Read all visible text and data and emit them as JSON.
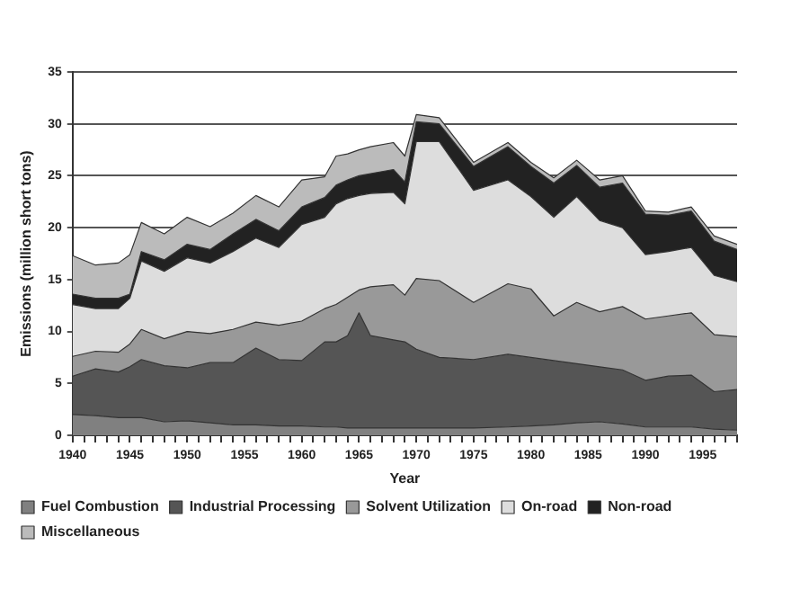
{
  "chart_data": {
    "type": "area",
    "stacked": true,
    "xlabel": "Year",
    "ylabel": "Emissions (million short tons)",
    "x": [
      1940,
      1942,
      1944,
      1945,
      1946,
      1948,
      1950,
      1952,
      1954,
      1956,
      1958,
      1960,
      1962,
      1963,
      1964,
      1965,
      1966,
      1968,
      1969,
      1970,
      1972,
      1975,
      1978,
      1980,
      1982,
      1984,
      1986,
      1988,
      1990,
      1992,
      1994,
      1996,
      1998
    ],
    "series": [
      {
        "name": "Fuel Combustion",
        "color": "#808080",
        "values": [
          2.0,
          1.9,
          1.7,
          1.7,
          1.7,
          1.3,
          1.4,
          1.2,
          1.0,
          1.0,
          0.9,
          0.9,
          0.8,
          0.8,
          0.7,
          0.7,
          0.7,
          0.7,
          0.7,
          0.7,
          0.7,
          0.7,
          0.8,
          0.9,
          1.0,
          1.2,
          1.3,
          1.1,
          0.8,
          0.8,
          0.8,
          0.6,
          0.5
        ]
      },
      {
        "name": "Industrial Processing",
        "color": "#555555",
        "values": [
          3.7,
          4.5,
          4.4,
          4.9,
          5.6,
          5.4,
          5.1,
          5.8,
          6.0,
          7.4,
          6.4,
          6.3,
          8.2,
          8.2,
          8.9,
          11.1,
          8.9,
          8.5,
          8.3,
          7.6,
          6.8,
          6.6,
          7.0,
          6.6,
          6.2,
          5.7,
          5.3,
          5.2,
          4.5,
          4.9,
          5.0,
          3.6,
          3.9
        ]
      },
      {
        "name": "Solvent Utilization",
        "color": "#999999",
        "values": [
          1.9,
          1.7,
          1.9,
          2.2,
          2.9,
          2.6,
          3.5,
          2.8,
          3.2,
          2.5,
          3.3,
          3.8,
          3.2,
          3.6,
          3.7,
          2.2,
          4.7,
          5.3,
          4.5,
          6.8,
          7.4,
          5.5,
          6.8,
          6.6,
          4.3,
          5.9,
          5.3,
          6.1,
          5.9,
          5.8,
          6.0,
          5.5,
          5.1
        ]
      },
      {
        "name": "On-road",
        "color": "#dddddd",
        "values": [
          5.0,
          4.1,
          4.2,
          4.4,
          6.6,
          6.5,
          7.1,
          6.8,
          7.5,
          8.1,
          7.5,
          9.3,
          8.8,
          9.7,
          9.5,
          9.1,
          9.0,
          8.9,
          8.8,
          13.2,
          13.4,
          10.8,
          10.0,
          8.9,
          9.5,
          10.2,
          8.8,
          7.6,
          6.2,
          6.2,
          6.3,
          5.7,
          5.3
        ]
      },
      {
        "name": "Non-road",
        "color": "#222222",
        "values": [
          1.0,
          1.0,
          1.0,
          0.4,
          0.9,
          1.1,
          1.3,
          1.3,
          1.7,
          1.8,
          1.6,
          1.7,
          1.9,
          1.8,
          1.8,
          1.9,
          1.9,
          2.2,
          2.1,
          1.9,
          1.7,
          2.3,
          3.2,
          2.9,
          3.3,
          3.0,
          3.2,
          4.3,
          3.9,
          3.5,
          3.5,
          3.3,
          3.1
        ]
      },
      {
        "name": "Miscellaneous",
        "color": "#bbbbbb",
        "values": [
          3.7,
          3.2,
          3.4,
          3.8,
          2.8,
          2.5,
          2.6,
          2.2,
          2.0,
          2.3,
          2.3,
          2.6,
          2.0,
          2.8,
          2.5,
          2.5,
          2.6,
          2.6,
          2.5,
          0.7,
          0.6,
          0.4,
          0.4,
          0.4,
          0.5,
          0.5,
          0.7,
          0.7,
          0.3,
          0.3,
          0.4,
          0.5,
          0.5
        ]
      }
    ],
    "xlim": [
      1940,
      1998
    ],
    "xticks": [
      1940,
      {
        "value": 1941,
        "label": null
      },
      {
        "value": 1942,
        "label": null
      },
      {
        "value": 1943,
        "label": null
      },
      {
        "value": 1944,
        "label": null
      },
      1945,
      {
        "value": 1946,
        "label": null
      },
      {
        "value": 1947,
        "label": null
      },
      {
        "value": 1948,
        "label": null
      },
      {
        "value": 1949,
        "label": null
      },
      1950,
      {
        "value": 1951,
        "label": null
      },
      {
        "value": 1952,
        "label": null
      },
      {
        "value": 1953,
        "label": null
      },
      {
        "value": 1954,
        "label": null
      },
      1955,
      {
        "value": 1956,
        "label": null
      },
      {
        "value": 1957,
        "label": null
      },
      {
        "value": 1958,
        "label": null
      },
      {
        "value": 1959,
        "label": null
      },
      1960,
      {
        "value": 1961,
        "label": null
      },
      {
        "value": 1962,
        "label": null
      },
      {
        "value": 1963,
        "label": null
      },
      {
        "value": 1964,
        "label": null
      },
      1965,
      {
        "value": 1966,
        "label": null
      },
      {
        "value": 1967,
        "label": null
      },
      {
        "value": 1968,
        "label": null
      },
      {
        "value": 1969,
        "label": null
      },
      1970,
      {
        "value": 1971,
        "label": null
      },
      {
        "value": 1972,
        "label": null
      },
      {
        "value": 1973,
        "label": null
      },
      {
        "value": 1974,
        "label": null
      },
      1975,
      {
        "value": 1976,
        "label": null
      },
      {
        "value": 1977,
        "label": null
      },
      {
        "value": 1978,
        "label": null
      },
      {
        "value": 1979,
        "label": null
      },
      1980,
      {
        "value": 1981,
        "label": null
      },
      {
        "value": 1982,
        "label": null
      },
      {
        "value": 1983,
        "label": null
      },
      {
        "value": 1984,
        "label": null
      },
      1985,
      {
        "value": 1986,
        "label": null
      },
      {
        "value": 1987,
        "label": null
      },
      {
        "value": 1988,
        "label": null
      },
      {
        "value": 1989,
        "label": null
      },
      1990,
      {
        "value": 1991,
        "label": null
      },
      {
        "value": 1992,
        "label": null
      },
      {
        "value": 1993,
        "label": null
      },
      {
        "value": 1994,
        "label": null
      },
      1995,
      {
        "value": 1996,
        "label": null
      },
      {
        "value": 1997,
        "label": null
      },
      {
        "value": 1998,
        "label": null
      }
    ],
    "ylim": [
      0,
      35
    ],
    "yticks": [
      0,
      5,
      10,
      15,
      20,
      25,
      30,
      35
    ],
    "grid": "y",
    "legend": "bottom"
  }
}
